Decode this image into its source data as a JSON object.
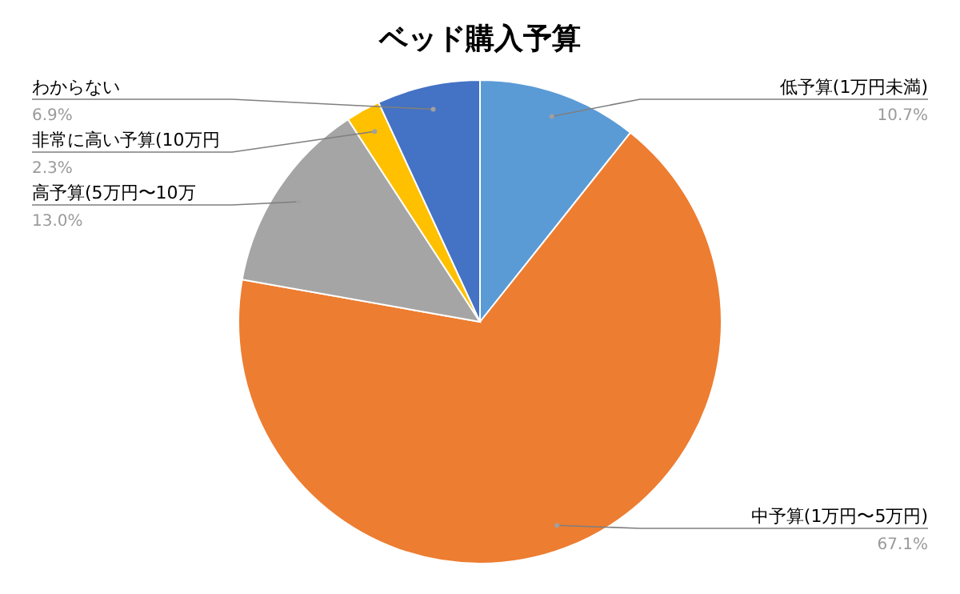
{
  "chart_data": {
    "type": "pie",
    "title": "ベッド購入予算",
    "categories": [
      "低予算(1万円未満)",
      "中予算(1万円〜5万円)",
      "高予算(5万円〜10万",
      "非常に高い予算(10万円",
      "わからない"
    ],
    "values": [
      10.7,
      67.1,
      13.0,
      2.3,
      6.9
    ],
    "value_labels": [
      "10.7%",
      "67.1%",
      "13.0%",
      "2.3%",
      "6.9%"
    ],
    "colors": [
      "#5b9bd5",
      "#ed7d31",
      "#a5a5a5",
      "#ffc000",
      "#4472c4"
    ]
  }
}
